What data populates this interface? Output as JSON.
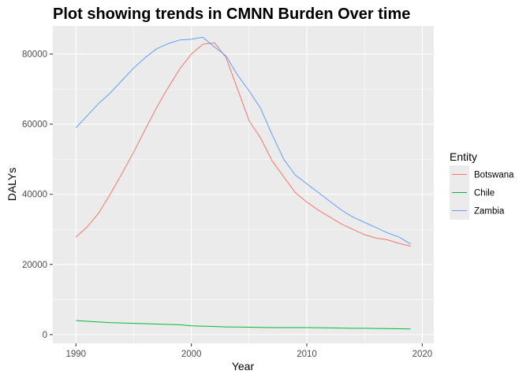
{
  "chart_data": {
    "type": "line",
    "title": "Plot showing trends in CMNN Burden Over time",
    "xlabel": "Year",
    "ylabel": "DALYs",
    "xlim": [
      1988,
      2021
    ],
    "ylim": [
      -2500,
      88000
    ],
    "x_ticks": [
      1990,
      2000,
      2010,
      2020
    ],
    "x_tick_labels": [
      "1990",
      "2000",
      "2010",
      "2020"
    ],
    "y_ticks": [
      0,
      20000,
      40000,
      60000,
      80000
    ],
    "y_tick_labels": [
      "0",
      "20000",
      "40000",
      "60000",
      "80000"
    ],
    "grid": true,
    "legend": {
      "title": "Entity",
      "position": "right"
    },
    "x": [
      1990,
      1991,
      1992,
      1993,
      1994,
      1995,
      1996,
      1997,
      1998,
      1999,
      2000,
      2001,
      2002,
      2003,
      2004,
      2005,
      2006,
      2007,
      2008,
      2009,
      2010,
      2011,
      2012,
      2013,
      2014,
      2015,
      2016,
      2017,
      2018,
      2019
    ],
    "series": [
      {
        "name": "Botswana",
        "color": "#F8766D",
        "values": [
          27800,
          30800,
          34800,
          40200,
          46000,
          52000,
          58500,
          64800,
          70500,
          75800,
          80000,
          82800,
          83200,
          79000,
          70000,
          61000,
          56000,
          49500,
          45000,
          40500,
          37800,
          35500,
          33500,
          31500,
          30000,
          28500,
          27500,
          27000,
          26000,
          25200
        ]
      },
      {
        "name": "Chile",
        "color": "#00BA38",
        "values": [
          4000,
          3800,
          3600,
          3400,
          3300,
          3200,
          3100,
          3000,
          2900,
          2800,
          2500,
          2400,
          2300,
          2200,
          2150,
          2100,
          2050,
          2000,
          2000,
          2000,
          2000,
          1950,
          1900,
          1850,
          1800,
          1800,
          1750,
          1700,
          1650,
          1600
        ]
      },
      {
        "name": "Zambia",
        "color": "#619CFF",
        "values": [
          59000,
          62500,
          66000,
          69000,
          72500,
          76000,
          79000,
          81500,
          83000,
          84000,
          84200,
          84800,
          82000,
          79500,
          74000,
          69500,
          64500,
          57000,
          50000,
          45500,
          43000,
          40500,
          38000,
          35500,
          33500,
          32000,
          30500,
          29000,
          27800,
          25800
        ]
      }
    ]
  }
}
